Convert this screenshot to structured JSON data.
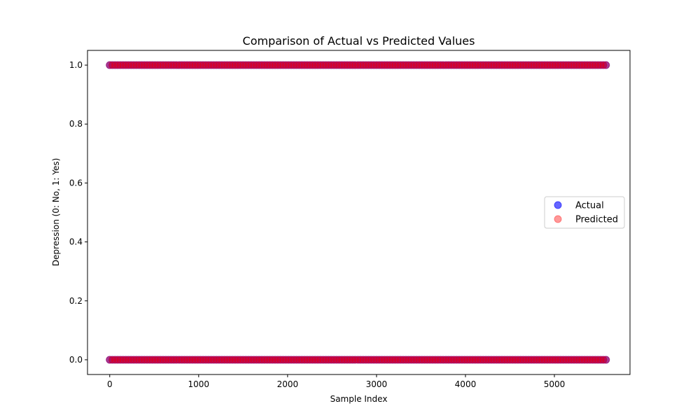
{
  "chart_data": {
    "type": "scatter",
    "title": "Comparison of Actual vs Predicted Values",
    "xlabel": "Sample Index",
    "ylabel": "Depression (0: No, 1: Yes)",
    "xlim": [
      -250,
      5850
    ],
    "ylim": [
      -0.05,
      1.05
    ],
    "xticks": [
      0,
      1000,
      2000,
      3000,
      4000,
      5000
    ],
    "yticks": [
      0.0,
      0.2,
      0.4,
      0.6,
      0.8,
      1.0
    ],
    "xtick_labels": [
      "0",
      "1000",
      "2000",
      "3000",
      "4000",
      "5000"
    ],
    "ytick_labels": [
      "0.0",
      "0.2",
      "0.4",
      "0.6",
      "0.8",
      "1.0"
    ],
    "x_range": [
      0,
      5580
    ],
    "y_values": [
      0,
      1
    ],
    "legend_position": "center-right",
    "series": [
      {
        "name": "Actual",
        "color": "#0000ff",
        "alpha": 0.6
      },
      {
        "name": "Predicted",
        "color": "#ff0000",
        "alpha": 0.4
      }
    ]
  }
}
